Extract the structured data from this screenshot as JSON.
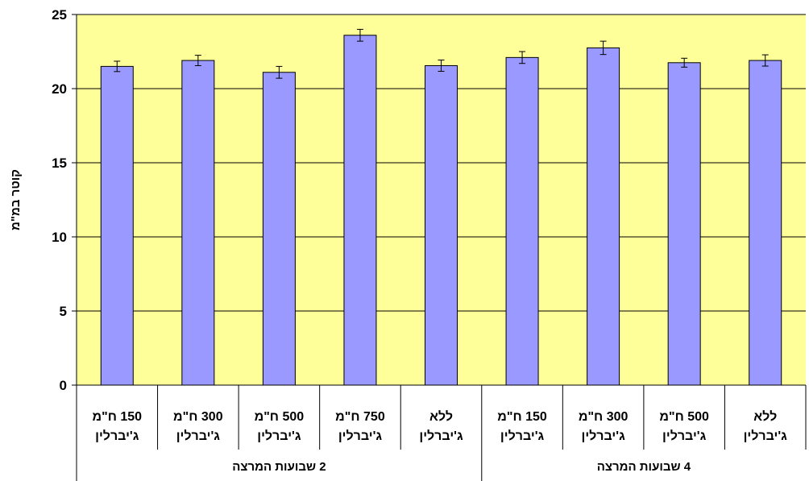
{
  "chart_data": {
    "type": "bar",
    "title": "",
    "ylabel": "קוטר במ\"מ",
    "xlabel": "",
    "ylim": [
      0,
      25
    ],
    "yticks": [
      0,
      5,
      10,
      15,
      20,
      25
    ],
    "grid": true,
    "legend": "none",
    "colors": {
      "plot_bg": "#FFFF99",
      "bar": "#9999FF",
      "bar_border": "#000000"
    },
    "categories": [
      [
        "150 ח\"מ",
        "ג'יברלין"
      ],
      [
        "300 ח\"מ",
        "ג'יברלין"
      ],
      [
        "500 ח\"מ",
        "ג'יברלין"
      ],
      [
        "750 ח\"מ",
        "ג'יברלין"
      ],
      [
        "ללא",
        "ג'יברלין"
      ],
      [
        "150 ח\"מ",
        "ג'יברלין"
      ],
      [
        "300 ח\"מ",
        "ג'יברלין"
      ],
      [
        "500 ח\"מ",
        "ג'יברלין"
      ],
      [
        "ללא",
        "ג'יברלין"
      ]
    ],
    "groups": [
      {
        "label": "2 שבועות המרצה",
        "count": 5
      },
      {
        "label": "4 שבועות המרצה",
        "count": 4
      }
    ],
    "values": [
      21.5,
      21.9,
      21.1,
      23.6,
      21.55,
      22.1,
      22.75,
      21.75,
      21.9
    ],
    "errors": [
      0.35,
      0.35,
      0.4,
      0.4,
      0.38,
      0.4,
      0.45,
      0.3,
      0.38
    ]
  }
}
